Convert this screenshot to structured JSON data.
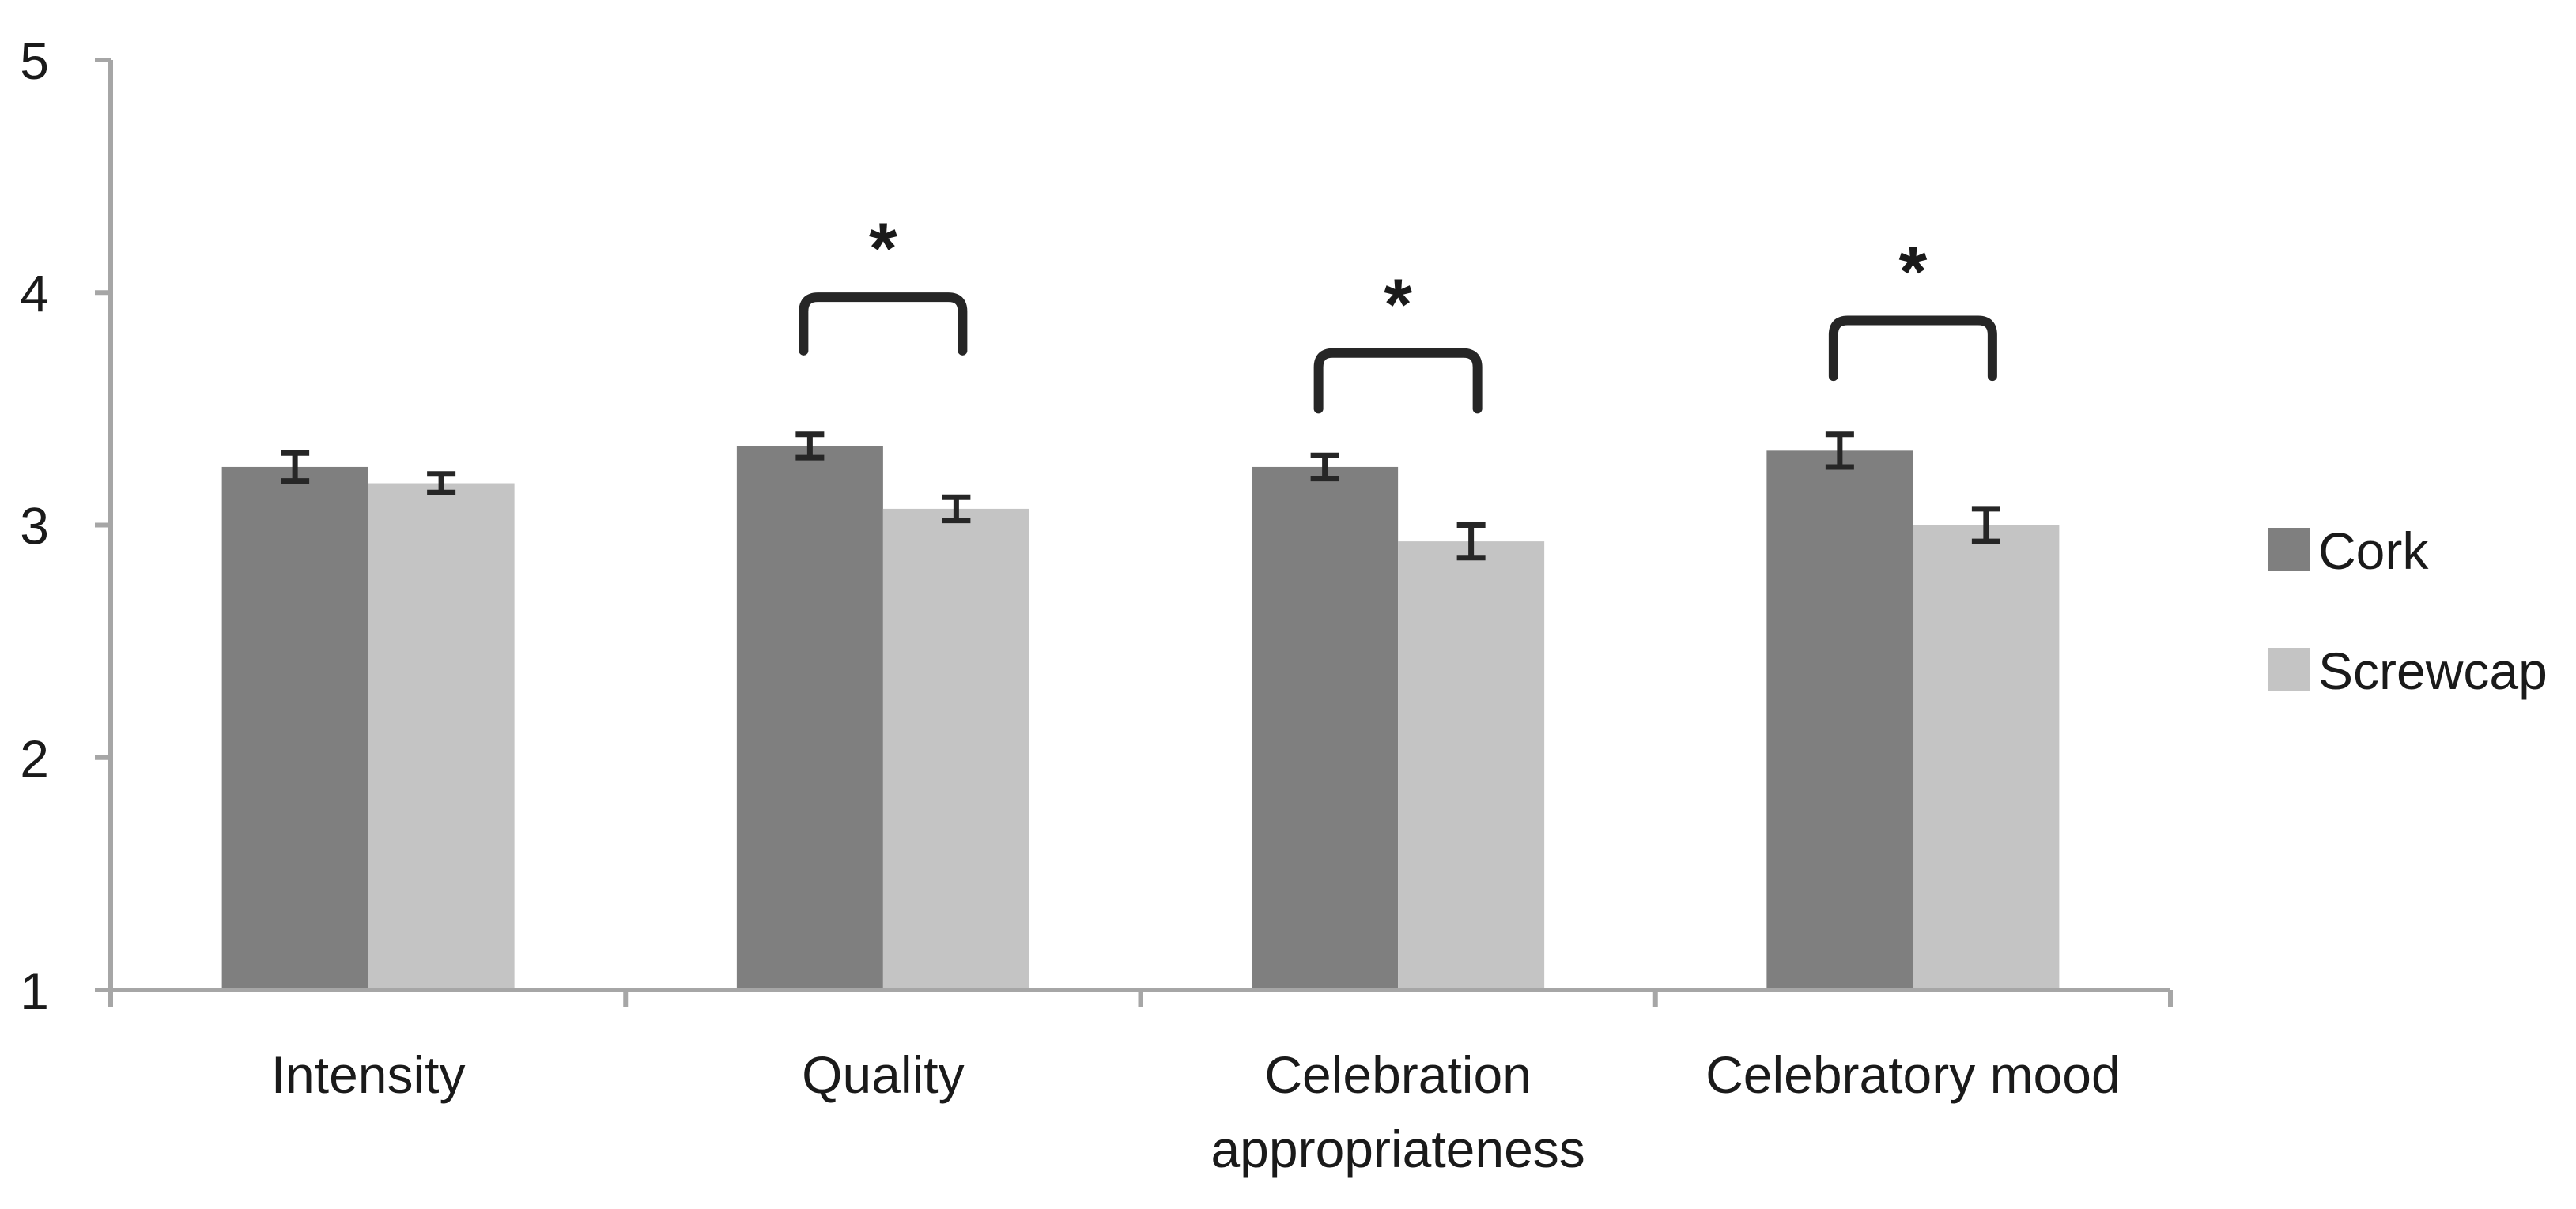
{
  "chart_data": {
    "type": "bar",
    "categories": [
      "Intensity",
      "Quality",
      "Celebration appropriateness",
      "Celebratory mood"
    ],
    "category_lines": [
      [
        "Intensity"
      ],
      [
        "Quality"
      ],
      [
        "Celebration",
        "appropriateness"
      ],
      [
        "Celebratory mood"
      ]
    ],
    "series": [
      {
        "name": "Cork",
        "color": "#7f7f7f",
        "values": [
          3.25,
          3.34,
          3.25,
          3.32
        ],
        "errors": [
          0.06,
          0.05,
          0.05,
          0.07
        ]
      },
      {
        "name": "Screwcap",
        "color": "#c4c4c4",
        "values": [
          3.18,
          3.07,
          2.93,
          3.0
        ],
        "errors": [
          0.04,
          0.05,
          0.07,
          0.07
        ]
      }
    ],
    "ylim": [
      1,
      5
    ],
    "yticks": [
      "1",
      "2",
      "3",
      "4",
      "5"
    ],
    "significance": [
      {
        "category": "Quality",
        "label": "*",
        "bracket_y": 3.98,
        "leg_bottom": 3.75
      },
      {
        "category": "Celebration appropriateness",
        "label": "*",
        "bracket_y": 3.74,
        "leg_bottom": 3.5
      },
      {
        "category": "Celebratory mood",
        "label": "*",
        "bracket_y": 3.88,
        "leg_bottom": 3.64
      }
    ],
    "legend_position": "right",
    "grid": false,
    "title": "",
    "xlabel": "",
    "ylabel": ""
  }
}
